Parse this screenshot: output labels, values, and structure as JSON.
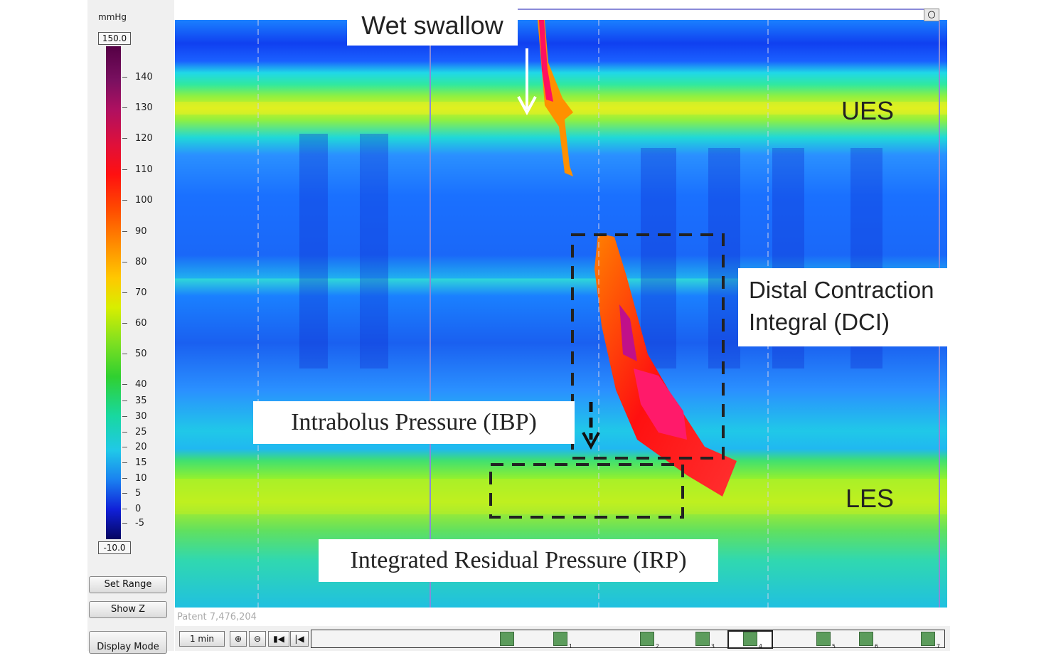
{
  "colorscale": {
    "unit": "mmHg",
    "max": "150.0",
    "min": "-10.0",
    "ticks": [
      "140",
      "130",
      "120",
      "110",
      "100",
      "90",
      "80",
      "70",
      "60",
      "50",
      "40",
      "35",
      "30",
      "25",
      "20",
      "15",
      "10",
      "5",
      "0",
      "-5"
    ]
  },
  "buttons": {
    "set_range": "Set Range",
    "show_z": "Show Z",
    "display_mode": "Display Mode",
    "zoom_label": "1 min"
  },
  "annotations": {
    "wet_swallow": "Wet swallow",
    "ues": "UES",
    "les": "LES",
    "dci_line1": "Distal Contraction",
    "dci_line2": "Integral (DCI)",
    "ibp": "Intrabolus Pressure (IBP)",
    "irp": "Integrated Residual Pressure (IRP)"
  },
  "footer": {
    "patent": "Patent 7,476,204"
  },
  "timeline_markers": [
    "",
    "1",
    "2",
    "3",
    "4",
    "5",
    "6",
    "7"
  ],
  "colors": {
    "panel_bg": "#f0f0f0",
    "selection_outline": "#8a8ad8"
  }
}
